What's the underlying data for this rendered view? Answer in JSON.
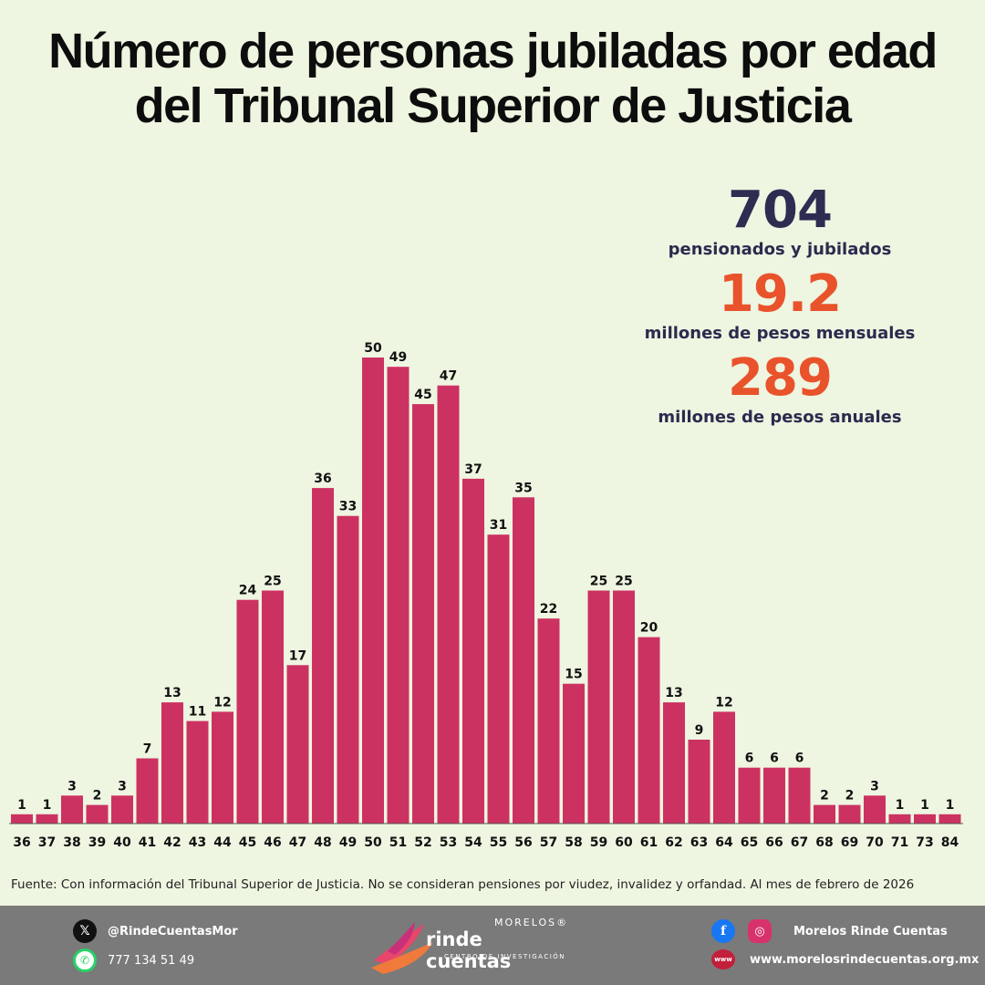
{
  "header": {
    "title_line1": "Número de personas jubiladas por edad",
    "title_line2": "del Tribunal Superior de Justicia"
  },
  "stats": [
    {
      "value": "704",
      "label": "pensionados y jubilados",
      "color": "#2d2d52"
    },
    {
      "value": "19.2",
      "label": "millones de pesos mensuales",
      "color": "#e9532b"
    },
    {
      "value": "289",
      "label": "millones de pesos anuales",
      "color": "#e9532b"
    }
  ],
  "chart_data": {
    "type": "bar",
    "title": "Número de personas jubiladas por edad del Tribunal Superior de Justicia",
    "xlabel": "",
    "ylabel": "",
    "categories": [
      "36",
      "37",
      "38",
      "39",
      "40",
      "41",
      "42",
      "43",
      "44",
      "45",
      "46",
      "47",
      "48",
      "49",
      "50",
      "51",
      "52",
      "53",
      "54",
      "55",
      "56",
      "57",
      "58",
      "59",
      "60",
      "61",
      "62",
      "63",
      "64",
      "65",
      "66",
      "67",
      "68",
      "69",
      "70",
      "71",
      "73",
      "84"
    ],
    "values": [
      1,
      1,
      3,
      2,
      3,
      7,
      13,
      11,
      12,
      24,
      25,
      17,
      36,
      33,
      50,
      49,
      45,
      47,
      37,
      31,
      35,
      22,
      15,
      25,
      25,
      20,
      13,
      9,
      12,
      6,
      6,
      6,
      2,
      2,
      3,
      1,
      1,
      1
    ],
    "ylim": [
      0,
      50
    ],
    "grid": false,
    "bar_color": "#cc3261"
  },
  "source": "Fuente: Con información del Tribunal Superior de Justicia. No se consideran pensiones por viudez, invalidez y orfandad. Al mes de febrero de 2026",
  "footer": {
    "twitter_handle": "@RindeCuentasMor",
    "whatsapp_number": "777 134 51 49",
    "logo_top": "MORELOS®",
    "logo_main": "rinde cuentas",
    "logo_sub": "CENTRO DE INVESTIGACIÓN",
    "social_name": "Morelos Rinde Cuentas",
    "website": "www.morelosrindecuentas.org.mx",
    "icons": [
      "x-icon",
      "whatsapp-icon",
      "facebook-icon",
      "instagram-icon",
      "www-icon"
    ]
  }
}
